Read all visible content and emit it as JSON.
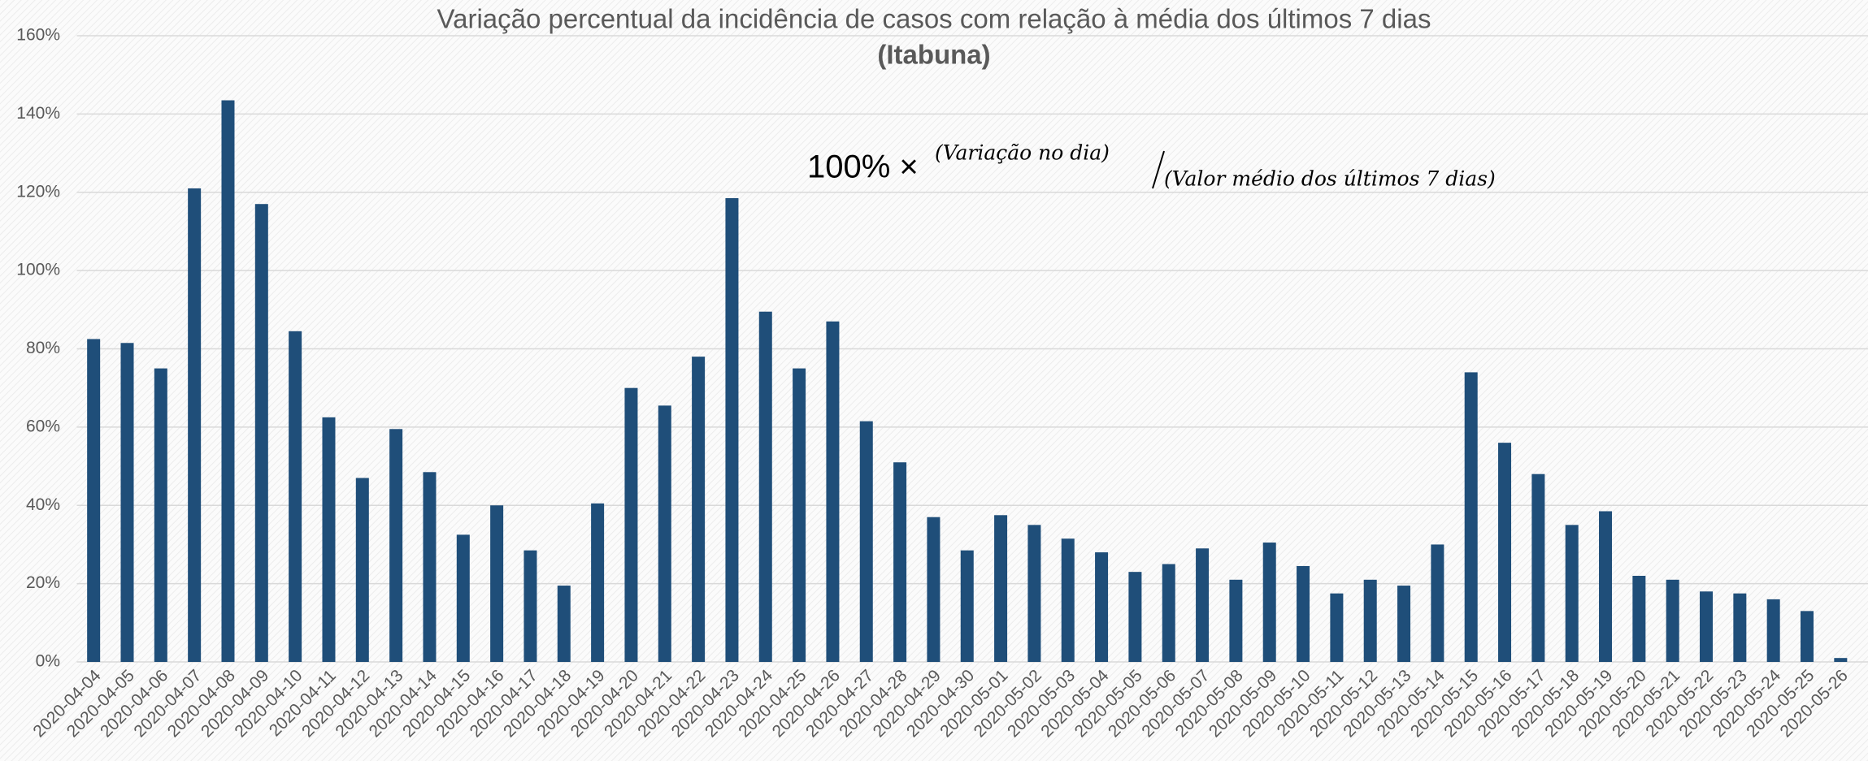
{
  "chart_data": {
    "type": "bar",
    "title": "Variação percentual da incidência de casos com relação à média dos últimos 7 dias",
    "subtitle": "(Itabuna)",
    "annotation": {
      "prefix": "100% ×",
      "numerator": "(Variação no dia)",
      "denominator": "(Valor médio dos últimos 7 dias)"
    },
    "categories": [
      "2020-04-04",
      "2020-04-05",
      "2020-04-06",
      "2020-04-07",
      "2020-04-08",
      "2020-04-09",
      "2020-04-10",
      "2020-04-11",
      "2020-04-12",
      "2020-04-13",
      "2020-04-14",
      "2020-04-15",
      "2020-04-16",
      "2020-04-17",
      "2020-04-18",
      "2020-04-19",
      "2020-04-20",
      "2020-04-21",
      "2020-04-22",
      "2020-04-23",
      "2020-04-24",
      "2020-04-25",
      "2020-04-26",
      "2020-04-27",
      "2020-04-28",
      "2020-04-29",
      "2020-04-30",
      "2020-05-01",
      "2020-05-02",
      "2020-05-03",
      "2020-05-04",
      "2020-05-05",
      "2020-05-06",
      "2020-05-07",
      "2020-05-08",
      "2020-05-09",
      "2020-05-10",
      "2020-05-11",
      "2020-05-12",
      "2020-05-13",
      "2020-05-14",
      "2020-05-15",
      "2020-05-16",
      "2020-05-17",
      "2020-05-18",
      "2020-05-19",
      "2020-05-20",
      "2020-05-21",
      "2020-05-22",
      "2020-05-23",
      "2020-05-24",
      "2020-05-25",
      "2020-05-26"
    ],
    "values": [
      82.5,
      81.5,
      75,
      121,
      143.5,
      117,
      84.5,
      62.5,
      47,
      59.5,
      48.5,
      32.5,
      40,
      28.5,
      19.5,
      40.5,
      70,
      65.5,
      78,
      118.5,
      89.5,
      75,
      87,
      61.5,
      51,
      37,
      28.5,
      37.5,
      35,
      31.5,
      28,
      23,
      25,
      29,
      21,
      30.5,
      24.5,
      17.5,
      21,
      19.5,
      30,
      74,
      56,
      48,
      35,
      38.5,
      22,
      21,
      18,
      17.5,
      16,
      13,
      1
    ],
    "color": "#1f4e79",
    "ylim": [
      0,
      160
    ],
    "yticks": [
      {
        "value": 0,
        "label": "0%"
      },
      {
        "value": 20,
        "label": "20%"
      },
      {
        "value": 40,
        "label": "40%"
      },
      {
        "value": 60,
        "label": "60%"
      },
      {
        "value": 80,
        "label": "80%"
      },
      {
        "value": 100,
        "label": "100%"
      },
      {
        "value": 120,
        "label": "120%"
      },
      {
        "value": 140,
        "label": "140%"
      },
      {
        "value": 160,
        "label": "160%"
      }
    ],
    "grid": true
  }
}
